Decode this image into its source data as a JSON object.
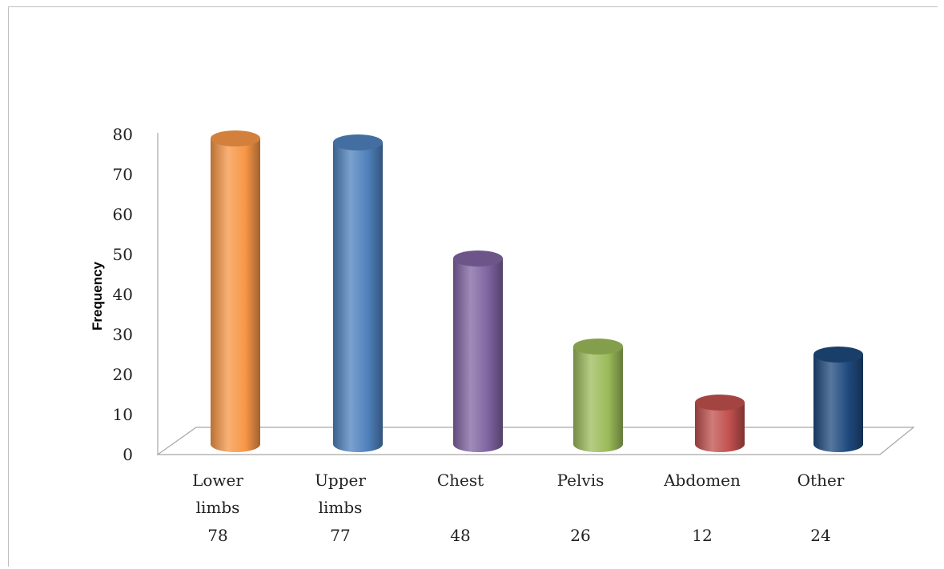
{
  "chart_data": {
    "type": "bar",
    "style": "3d-cylinder",
    "title": "",
    "xlabel": "",
    "ylabel": "Frequency",
    "ylim": [
      0,
      80
    ],
    "yticks": [
      0,
      10,
      20,
      30,
      40,
      50,
      60,
      70,
      80
    ],
    "grid": false,
    "legend": "none",
    "categories": [
      {
        "label_lines": [
          "Lower",
          "limbs"
        ],
        "count_label": "78",
        "value": 78,
        "color": "#f79646"
      },
      {
        "label_lines": [
          "Upper",
          "limbs"
        ],
        "count_label": "77",
        "value": 77,
        "color": "#4f81bd"
      },
      {
        "label_lines": [
          "Chest"
        ],
        "count_label": "48",
        "value": 48,
        "color": "#8064a2"
      },
      {
        "label_lines": [
          "Pelvis"
        ],
        "count_label": "26",
        "value": 26,
        "color": "#9bbb59"
      },
      {
        "label_lines": [
          "Abdomen"
        ],
        "count_label": "12",
        "value": 12,
        "color": "#c0504d"
      },
      {
        "label_lines": [
          "Other"
        ],
        "count_label": "24",
        "value": 24,
        "color": "#1f497d"
      }
    ]
  }
}
